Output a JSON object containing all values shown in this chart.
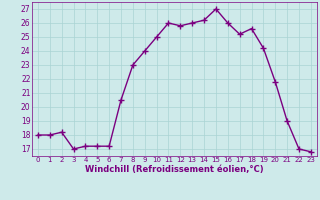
{
  "x": [
    0,
    1,
    2,
    3,
    4,
    5,
    6,
    7,
    8,
    9,
    10,
    11,
    12,
    13,
    14,
    15,
    16,
    17,
    18,
    19,
    20,
    21,
    22,
    23
  ],
  "y": [
    18,
    18,
    18.2,
    17,
    17.2,
    17.2,
    17.2,
    20.5,
    23,
    24,
    25,
    26,
    25.8,
    26,
    26.2,
    27,
    26,
    25.2,
    25.6,
    24.2,
    21.8,
    19,
    17,
    16.8
  ],
  "line_color": "#7b0080",
  "marker": "+",
  "bg_color": "#ceeaea",
  "grid_color": "#aad4d4",
  "xlabel": "Windchill (Refroidissement éolien,°C)",
  "xlabel_color": "#7b0080",
  "ylabel_ticks": [
    17,
    18,
    19,
    20,
    21,
    22,
    23,
    24,
    25,
    26,
    27
  ],
  "xtick_labels": [
    "0",
    "1",
    "2",
    "3",
    "4",
    "5",
    "6",
    "7",
    "8",
    "9",
    "10",
    "11",
    "12",
    "13",
    "14",
    "15",
    "16",
    "17",
    "18",
    "19",
    "20",
    "21",
    "22",
    "23"
  ],
  "ylim": [
    16.5,
    27.5
  ],
  "xlim": [
    -0.5,
    23.5
  ],
  "tick_color": "#7b0080",
  "linewidth": 1.0,
  "markersize": 4,
  "markeredgewidth": 1.0,
  "ytick_fontsize": 5.5,
  "xtick_fontsize": 5.0,
  "xlabel_fontsize": 6.0
}
